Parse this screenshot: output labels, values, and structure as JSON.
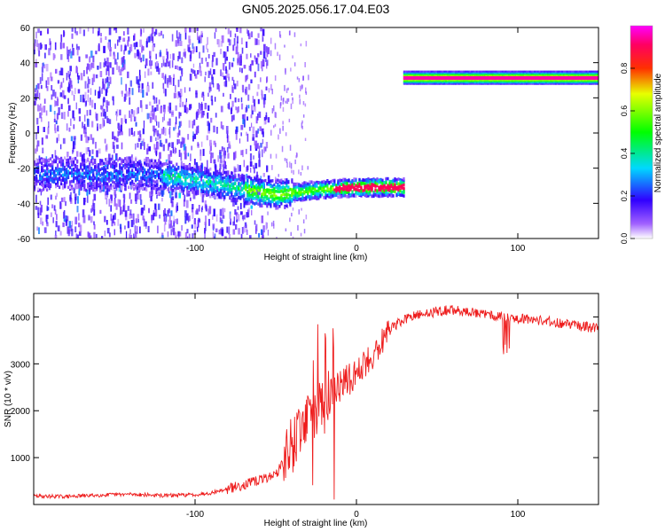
{
  "title": "GN05.2025.056.17.04.E03",
  "chart_data": [
    {
      "type": "heatmap",
      "xlabel": "Height of straight line (km)",
      "ylabel": "Frequency (Hz)",
      "xlim": [
        -200,
        150
      ],
      "ylim": [
        -60,
        60
      ],
      "x_ticks": [
        -100,
        0,
        100
      ],
      "y_ticks": [
        -60,
        -40,
        -20,
        0,
        20,
        40,
        60
      ],
      "colorbar": {
        "label": "Normalized spectral amplitude",
        "range": [
          0,
          1
        ],
        "ticks": [
          0.0,
          0.2,
          0.4,
          0.6,
          0.8
        ],
        "tick_labels": [
          "0.0",
          "0.2",
          "0.4",
          "0.6",
          "0.8"
        ],
        "colors": [
          "#ffffff",
          "#7a00ff",
          "#0000ff",
          "#00ffff",
          "#00ff00",
          "#ffff00",
          "#ff0000",
          "#ff00ff"
        ]
      },
      "features": {
        "lower_trend": {
          "points": [
            [
              -200,
              -24
            ],
            [
              -180,
              -23
            ],
            [
              -160,
              -24
            ],
            [
              -140,
              -23
            ],
            [
              -120,
              -24
            ],
            [
              -100,
              -27
            ],
            [
              -80,
              -30
            ],
            [
              -60,
              -34
            ],
            [
              -50,
              -35
            ],
            [
              -40,
              -34
            ],
            [
              -30,
              -33
            ],
            [
              -20,
              -32
            ],
            [
              0,
              -31
            ],
            [
              29,
              -31
            ]
          ],
          "peak_amplitude": 0.9
        },
        "upper_band": {
          "x_range": [
            29,
            150
          ],
          "frequency": 32,
          "peak_amplitude": 0.95
        },
        "background_noise": {
          "x_range": [
            -200,
            -55
          ],
          "amplitude": 0.15
        }
      }
    },
    {
      "type": "line",
      "xlabel": "Height of straight line (km)",
      "ylabel": "SNR (10 * v/v)",
      "xlim": [
        -200,
        150
      ],
      "ylim": [
        0,
        4500
      ],
      "x_ticks": [
        -100,
        0,
        100
      ],
      "y_ticks": [
        1000,
        2000,
        3000,
        4000
      ],
      "color": "#ee1c1c",
      "series": [
        {
          "name": "",
          "x": [
            -200,
            -180,
            -160,
            -140,
            -120,
            -100,
            -90,
            -80,
            -70,
            -60,
            -50,
            -45,
            -40,
            -35,
            -30,
            -25,
            -20,
            -15,
            -10,
            -5,
            0,
            5,
            10,
            15,
            20,
            25,
            30,
            40,
            50,
            60,
            70,
            80,
            90,
            100,
            110,
            120,
            130,
            140,
            150
          ],
          "values": [
            180,
            170,
            200,
            220,
            190,
            210,
            250,
            330,
            420,
            520,
            650,
            900,
            1250,
            1600,
            1900,
            2000,
            2150,
            2350,
            2550,
            2650,
            2800,
            3000,
            3200,
            3450,
            3700,
            3850,
            3950,
            4050,
            4120,
            4150,
            4100,
            4050,
            4020,
            3980,
            3950,
            3900,
            3850,
            3800,
            3750
          ]
        }
      ]
    }
  ]
}
